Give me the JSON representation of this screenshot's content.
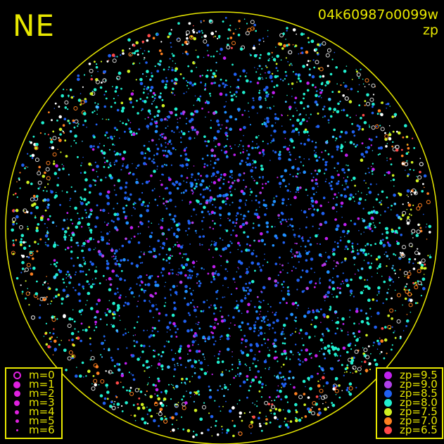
{
  "direction_label": "NE",
  "frame_id": "04k60987o0099w",
  "color_mode": "zp",
  "magnitude_legend": [
    {
      "label": "m=0",
      "style": "ring"
    },
    {
      "label": "m=1",
      "style": "filled"
    },
    {
      "label": "m=2",
      "style": "filled"
    },
    {
      "label": "m=3",
      "style": "filled"
    },
    {
      "label": "m=4",
      "style": "filled"
    },
    {
      "label": "m=5",
      "style": "filled"
    },
    {
      "label": "m=6",
      "style": "filled"
    }
  ],
  "magnitude_legend_color": "#e020e0",
  "zp_legend": [
    {
      "label": "zp=9.5",
      "color": "#c020f0"
    },
    {
      "label": "zp=9.0",
      "color": "#b040e8"
    },
    {
      "label": "zp=8.5",
      "color": "#2060f0"
    },
    {
      "label": "zp=8.0",
      "color": "#20f0d0"
    },
    {
      "label": "zp=7.5",
      "color": "#d0f020"
    },
    {
      "label": "zp=7.0",
      "color": "#ff8020"
    },
    {
      "label": "zp=6.5",
      "color": "#ff4848"
    }
  ],
  "horizon_color": "#e8e800"
}
